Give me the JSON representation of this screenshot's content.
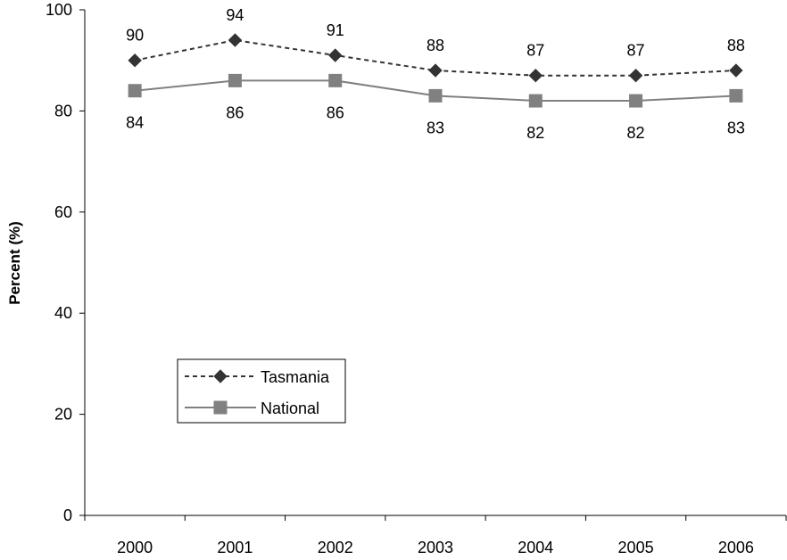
{
  "chart_data": {
    "type": "line",
    "title": "",
    "xlabel": "",
    "ylabel": "Percent (%)",
    "categories": [
      "2000",
      "2001",
      "2002",
      "2003",
      "2004",
      "2005",
      "2006"
    ],
    "ylim": [
      0,
      100
    ],
    "yticks": [
      0,
      20,
      40,
      60,
      80,
      100
    ],
    "grid": false,
    "legend_position": "left",
    "series": [
      {
        "name": "Tasmania",
        "values": [
          90,
          94,
          91,
          88,
          87,
          87,
          88
        ],
        "color": "#333333",
        "line_style": "dotted",
        "marker": "diamond"
      },
      {
        "name": "National",
        "values": [
          84,
          86,
          86,
          83,
          82,
          82,
          83
        ],
        "color": "#808080",
        "line_style": "solid",
        "marker": "square"
      }
    ]
  }
}
